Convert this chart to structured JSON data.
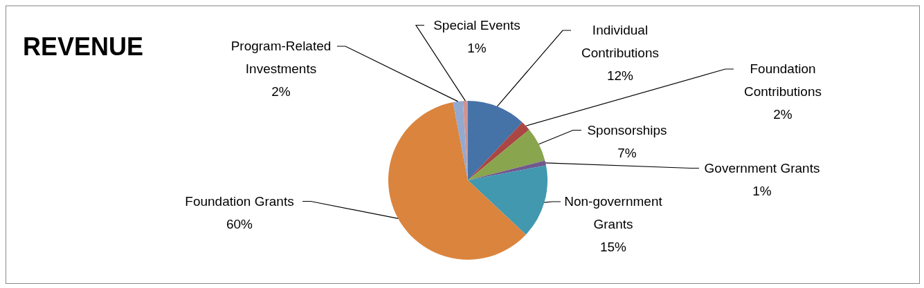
{
  "chart_data": {
    "type": "pie",
    "title": "REVENUE",
    "categories": [
      "Individual Contributions",
      "Foundation Contributions",
      "Sponsorships",
      "Government Grants",
      "Non-government Grants",
      "Foundation Grants",
      "Program-Related Investments",
      "Special Events"
    ],
    "values": [
      12,
      2,
      7,
      1,
      15,
      60,
      2,
      1
    ],
    "value_labels": [
      "12%",
      "2%",
      "7%",
      "1%",
      "15%",
      "60%",
      "2%",
      "1%"
    ],
    "colors": [
      "#4572a7",
      "#aa4643",
      "#89a54e",
      "#71588f",
      "#4198af",
      "#db843d",
      "#93a9cf",
      "#d19392"
    ],
    "legend": false
  }
}
